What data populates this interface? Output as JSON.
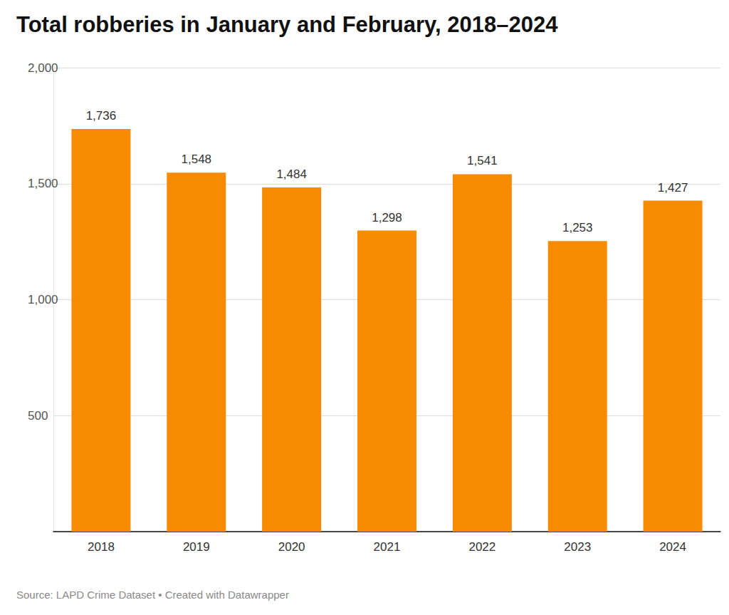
{
  "chart_data": {
    "type": "bar",
    "title": "Total robberies in January and February, 2018–2024",
    "source": "Source: LAPD Crime Dataset • Created with Datawrapper",
    "categories": [
      "2018",
      "2019",
      "2020",
      "2021",
      "2022",
      "2023",
      "2024"
    ],
    "values": [
      1736,
      1548,
      1484,
      1298,
      1541,
      1253,
      1427
    ],
    "value_labels": [
      "1,736",
      "1,548",
      "1,484",
      "1,298",
      "1,541",
      "1,253",
      "1,427"
    ],
    "color": "#f78b00",
    "ylim": [
      0,
      2000
    ],
    "yticks": [
      500,
      {
        "value": 1000,
        "label": "1,000"
      },
      {
        "value": 1500,
        "label": "1,500"
      },
      {
        "value": 2000,
        "label": "2,000"
      }
    ],
    "grid": true,
    "data_labels": true
  }
}
